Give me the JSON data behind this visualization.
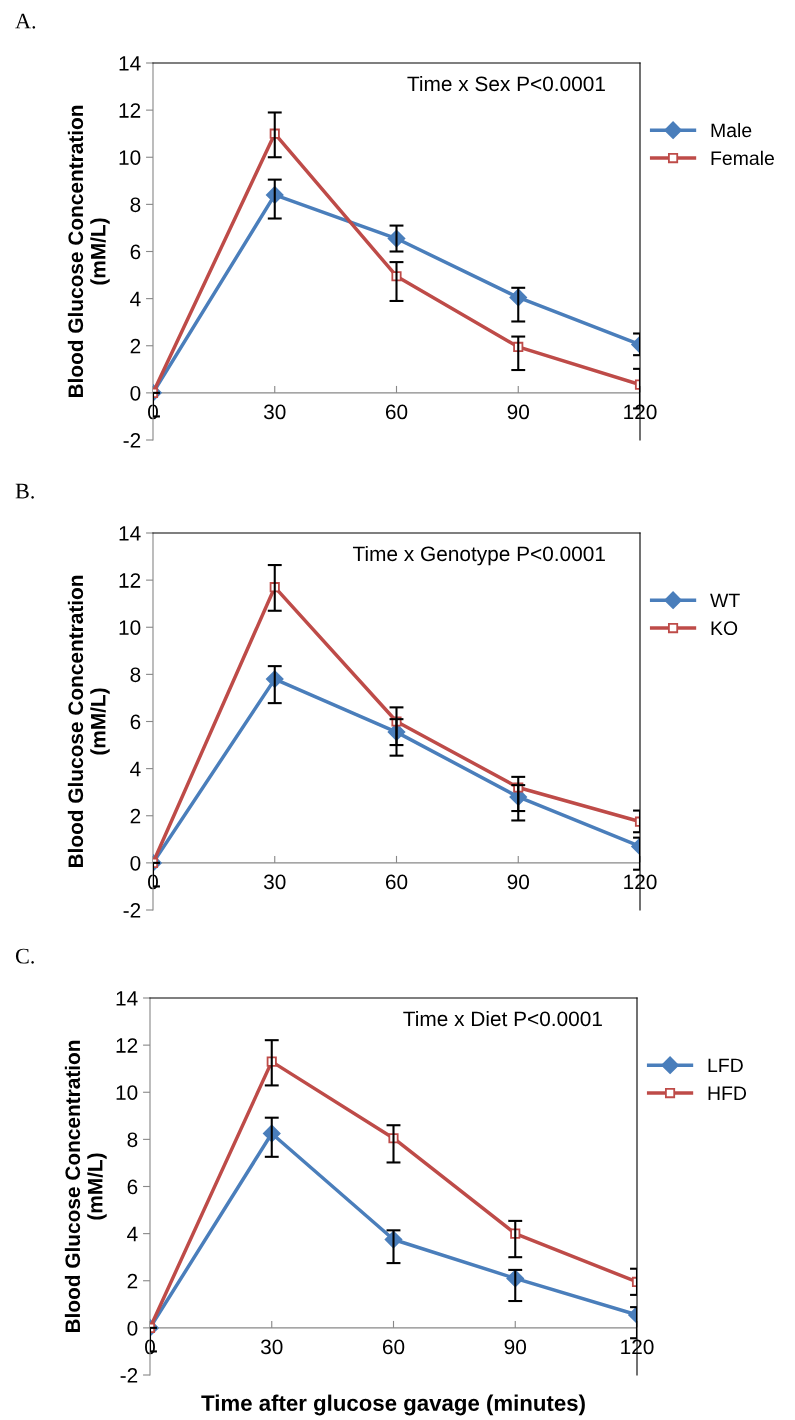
{
  "chart_data": [
    {
      "type": "line",
      "title": "A.",
      "ylabel": "Blood Glucose Concentration\n(mM/L)",
      "x": [
        0,
        30,
        60,
        90,
        120
      ],
      "xlim": [
        0,
        120
      ],
      "xticks": [
        0,
        30,
        60,
        90,
        120
      ],
      "ylim": [
        -2,
        14
      ],
      "yticks": [
        -2,
        0,
        2,
        4,
        6,
        8,
        10,
        12,
        14
      ],
      "grid": false,
      "legend": "right",
      "annotations": [
        "Time x Sex P<0.0001"
      ],
      "series": [
        {
          "name": "Male",
          "color": "#4a7ebb",
          "marker": "diamond",
          "values": [
            0,
            8.4,
            6.55,
            4.05,
            2.05
          ],
          "errors": [
            [
              -1.0,
              0
            ],
            [
              7.4,
              9.05
            ],
            [
              6.0,
              7.1
            ],
            [
              3.03,
              4.46
            ],
            [
              1.6,
              2.52
            ]
          ]
        },
        {
          "name": "Female",
          "color": "#be4b48",
          "marker": "square",
          "values": [
            0,
            11.0,
            4.95,
            1.95,
            0.35
          ],
          "errors": [
            null,
            [
              10.0,
              11.9
            ],
            [
              3.9,
              5.55
            ],
            [
              0.97,
              2.39
            ],
            [
              -0.66,
              1.02
            ]
          ]
        }
      ]
    },
    {
      "type": "line",
      "title": "B.",
      "ylabel": "Blood Glucose Concentration\n(mM/L)",
      "x": [
        0,
        30,
        60,
        90,
        120
      ],
      "xlim": [
        0,
        120
      ],
      "xticks": [
        0,
        30,
        60,
        90,
        120
      ],
      "ylim": [
        -2,
        14
      ],
      "yticks": [
        -2,
        0,
        2,
        4,
        6,
        8,
        10,
        12,
        14
      ],
      "grid": false,
      "legend": "right",
      "annotations": [
        "Time x Genotype P<0.0001"
      ],
      "series": [
        {
          "name": "WT",
          "color": "#4a7ebb",
          "marker": "diamond",
          "values": [
            0,
            7.8,
            5.55,
            2.8,
            0.7
          ],
          "errors": [
            [
              -1.0,
              0
            ],
            [
              6.78,
              8.35
            ],
            [
              4.55,
              6.1
            ],
            [
              1.8,
              3.3
            ],
            [
              -0.29,
              1.07
            ]
          ]
        },
        {
          "name": "KO",
          "color": "#be4b48",
          "marker": "square",
          "values": [
            0,
            11.7,
            6.0,
            3.2,
            1.75
          ],
          "errors": [
            null,
            [
              10.7,
              12.64
            ],
            [
              5.0,
              6.6
            ],
            [
              2.2,
              3.65
            ],
            [
              1.3,
              2.22
            ]
          ]
        }
      ]
    },
    {
      "type": "line",
      "title": "C.",
      "ylabel": "Blood Glucose Concentration\n(mM/L)",
      "xlabel": "Time after glucose gavage (minutes)",
      "x": [
        0,
        30,
        60,
        90,
        120
      ],
      "xlim": [
        0,
        120
      ],
      "xticks": [
        0,
        30,
        60,
        90,
        120
      ],
      "ylim": [
        -2,
        14
      ],
      "yticks": [
        -2,
        0,
        2,
        4,
        6,
        8,
        10,
        12,
        14
      ],
      "grid": false,
      "legend": "right",
      "annotations": [
        "Time x Diet P<0.0001"
      ],
      "series": [
        {
          "name": "LFD",
          "color": "#4a7ebb",
          "marker": "diamond",
          "values": [
            0,
            8.25,
            3.75,
            2.1,
            0.55
          ],
          "errors": [
            [
              -1.0,
              0
            ],
            [
              7.26,
              8.92
            ],
            [
              2.75,
              4.14
            ],
            [
              1.14,
              2.46
            ],
            [
              -0.44,
              0.88
            ]
          ]
        },
        {
          "name": "HFD",
          "color": "#be4b48",
          "marker": "square",
          "values": [
            0,
            11.3,
            8.05,
            4.0,
            1.95
          ],
          "errors": [
            null,
            [
              10.29,
              12.21
            ],
            [
              7.02,
              8.6
            ],
            [
              3.0,
              4.54
            ],
            [
              1.4,
              2.51
            ]
          ]
        }
      ]
    }
  ]
}
